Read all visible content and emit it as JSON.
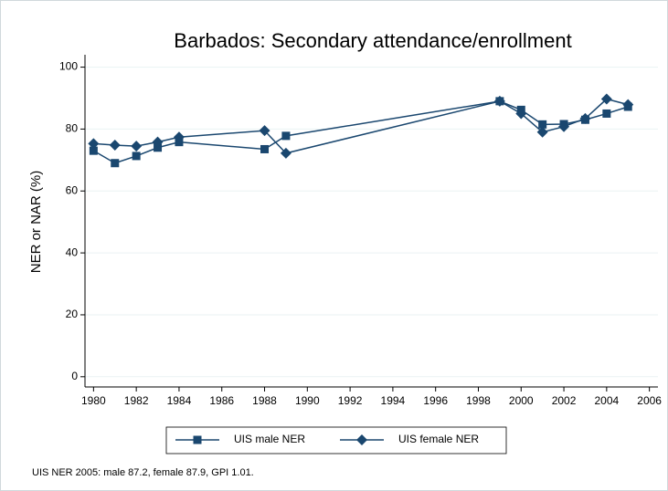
{
  "chart_data": {
    "type": "line",
    "title": "Barbados: Secondary attendance/enrollment",
    "y_label": "NER or NAR (%)",
    "note": "UIS NER 2005: male 87.2, female 87.9, GPI 1.01.",
    "x": [
      1980,
      1981,
      1982,
      1983,
      1984,
      1988,
      1989,
      1999,
      2000,
      2001,
      2002,
      2003,
      2004,
      2005
    ],
    "series": [
      {
        "name": "UIS male NER",
        "color": "#1a476f",
        "marker": "square",
        "values": [
          73,
          69,
          71.3,
          74,
          75.8,
          73.5,
          77.8,
          89,
          86.2,
          81.5,
          81.6,
          83,
          85,
          87.2
        ]
      },
      {
        "name": "UIS female NER",
        "color": "#1a476f",
        "marker": "diamond",
        "values": [
          75.3,
          74.8,
          74.5,
          75.8,
          77.4,
          79.5,
          72.2,
          89,
          85,
          79,
          80.8,
          83.4,
          89.7,
          87.9
        ]
      }
    ],
    "xlim": [
      1979.6,
      2006.4
    ],
    "xticks": [
      1980,
      1982,
      1984,
      1986,
      1988,
      1990,
      1992,
      1994,
      1996,
      1998,
      2000,
      2002,
      2004,
      2006
    ],
    "ylim": [
      -3.3,
      104
    ],
    "yticks": [
      0,
      20,
      40,
      60,
      80,
      100
    ],
    "grid": true,
    "legend": "bottom"
  }
}
